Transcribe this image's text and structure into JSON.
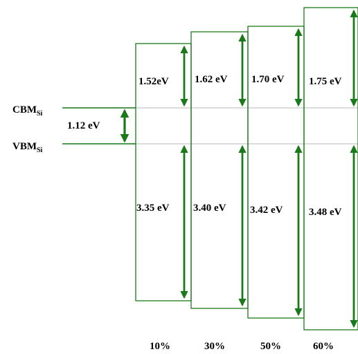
{
  "colors": {
    "green": "#1a7a1a",
    "gray_line": "#c8c8c8"
  },
  "si_levels": {
    "cbm_label": "CBM",
    "cbm_sub": "Si",
    "vbm_label": "VBM",
    "vbm_sub": "Si",
    "gap_label": "1.12 eV"
  },
  "columns": [
    {
      "percent": "10%",
      "upper_label": "1.52eV",
      "lower_label": "3.35 eV"
    },
    {
      "percent": "30%",
      "upper_label": "1.62 eV",
      "lower_label": "3.40 eV"
    },
    {
      "percent": "50%",
      "upper_label": "1.70 eV",
      "lower_label": "3.42 eV"
    },
    {
      "percent": "60%",
      "upper_label": "1.75 eV",
      "lower_label": "3.48 eV"
    }
  ]
}
